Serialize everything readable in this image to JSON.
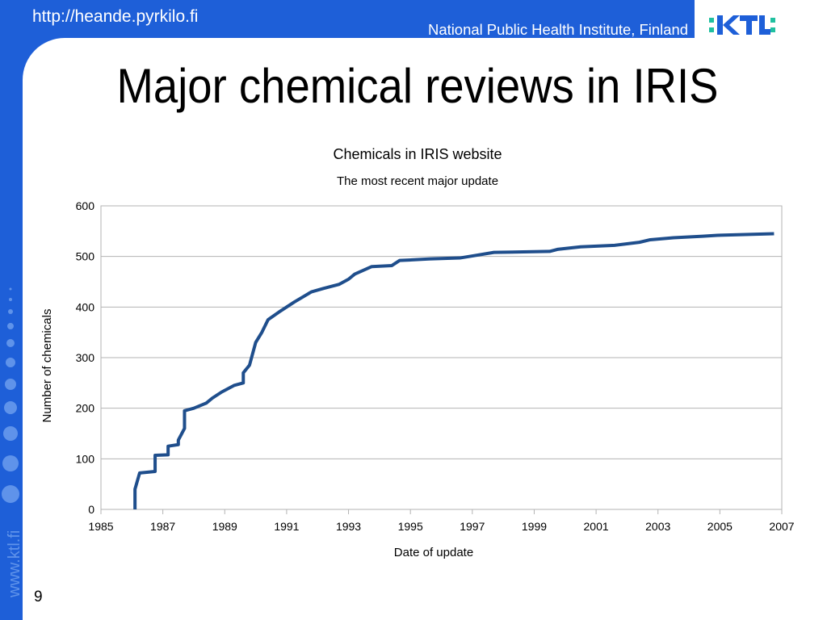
{
  "header": {
    "url": "http://heande.pyrkilo.fi",
    "institute": "National Public Health Institute, Finland"
  },
  "slide": {
    "title": "Major chemical reviews in IRIS",
    "side_text": "www.ktl.fi",
    "page_number": "9"
  },
  "chart_data": {
    "type": "line",
    "title": "Chemicals in IRIS website",
    "subtitle": "The most recent major update",
    "x_label": "Date of update",
    "y_label": "Number of chemicals",
    "x": [
      1986.1,
      1986.1,
      1986.25,
      1986.75,
      1986.75,
      1987.17,
      1987.17,
      1987.5,
      1987.5,
      1987.7,
      1987.7,
      1988.0,
      1988.4,
      1988.6,
      1988.9,
      1989.3,
      1989.6,
      1989.6,
      1989.8,
      1990.0,
      1990.2,
      1990.4,
      1990.75,
      1991.0,
      1991.25,
      1991.8,
      1992.2,
      1992.7,
      1993.0,
      1993.2,
      1993.75,
      1994.4,
      1994.65,
      1995.6,
      1996.6,
      1997.1,
      1997.7,
      1999.5,
      1999.75,
      2000.5,
      2001.6,
      2002.4,
      2002.75,
      2003.5,
      2004.45,
      2005.0,
      2006.75
    ],
    "series": [
      {
        "name": "Chemicals",
        "color": "#1f4e8c",
        "values": [
          0,
          40,
          72,
          75,
          107,
          108,
          125,
          128,
          137,
          160,
          195,
          200,
          210,
          220,
          232,
          245,
          250,
          270,
          285,
          330,
          350,
          375,
          390,
          400,
          410,
          430,
          437,
          445,
          455,
          465,
          480,
          482,
          492,
          495,
          497,
          502,
          508,
          510,
          514,
          519,
          522,
          528,
          533,
          537,
          540,
          542,
          545
        ]
      }
    ],
    "xlim": [
      1985,
      2007
    ],
    "xticks": [
      1985,
      1987,
      1989,
      1991,
      1993,
      1995,
      1997,
      1999,
      2001,
      2003,
      2005,
      2007
    ],
    "ylim": [
      0,
      600
    ],
    "yticks": [
      0,
      100,
      200,
      300,
      400,
      500,
      600
    ],
    "grid": true
  }
}
